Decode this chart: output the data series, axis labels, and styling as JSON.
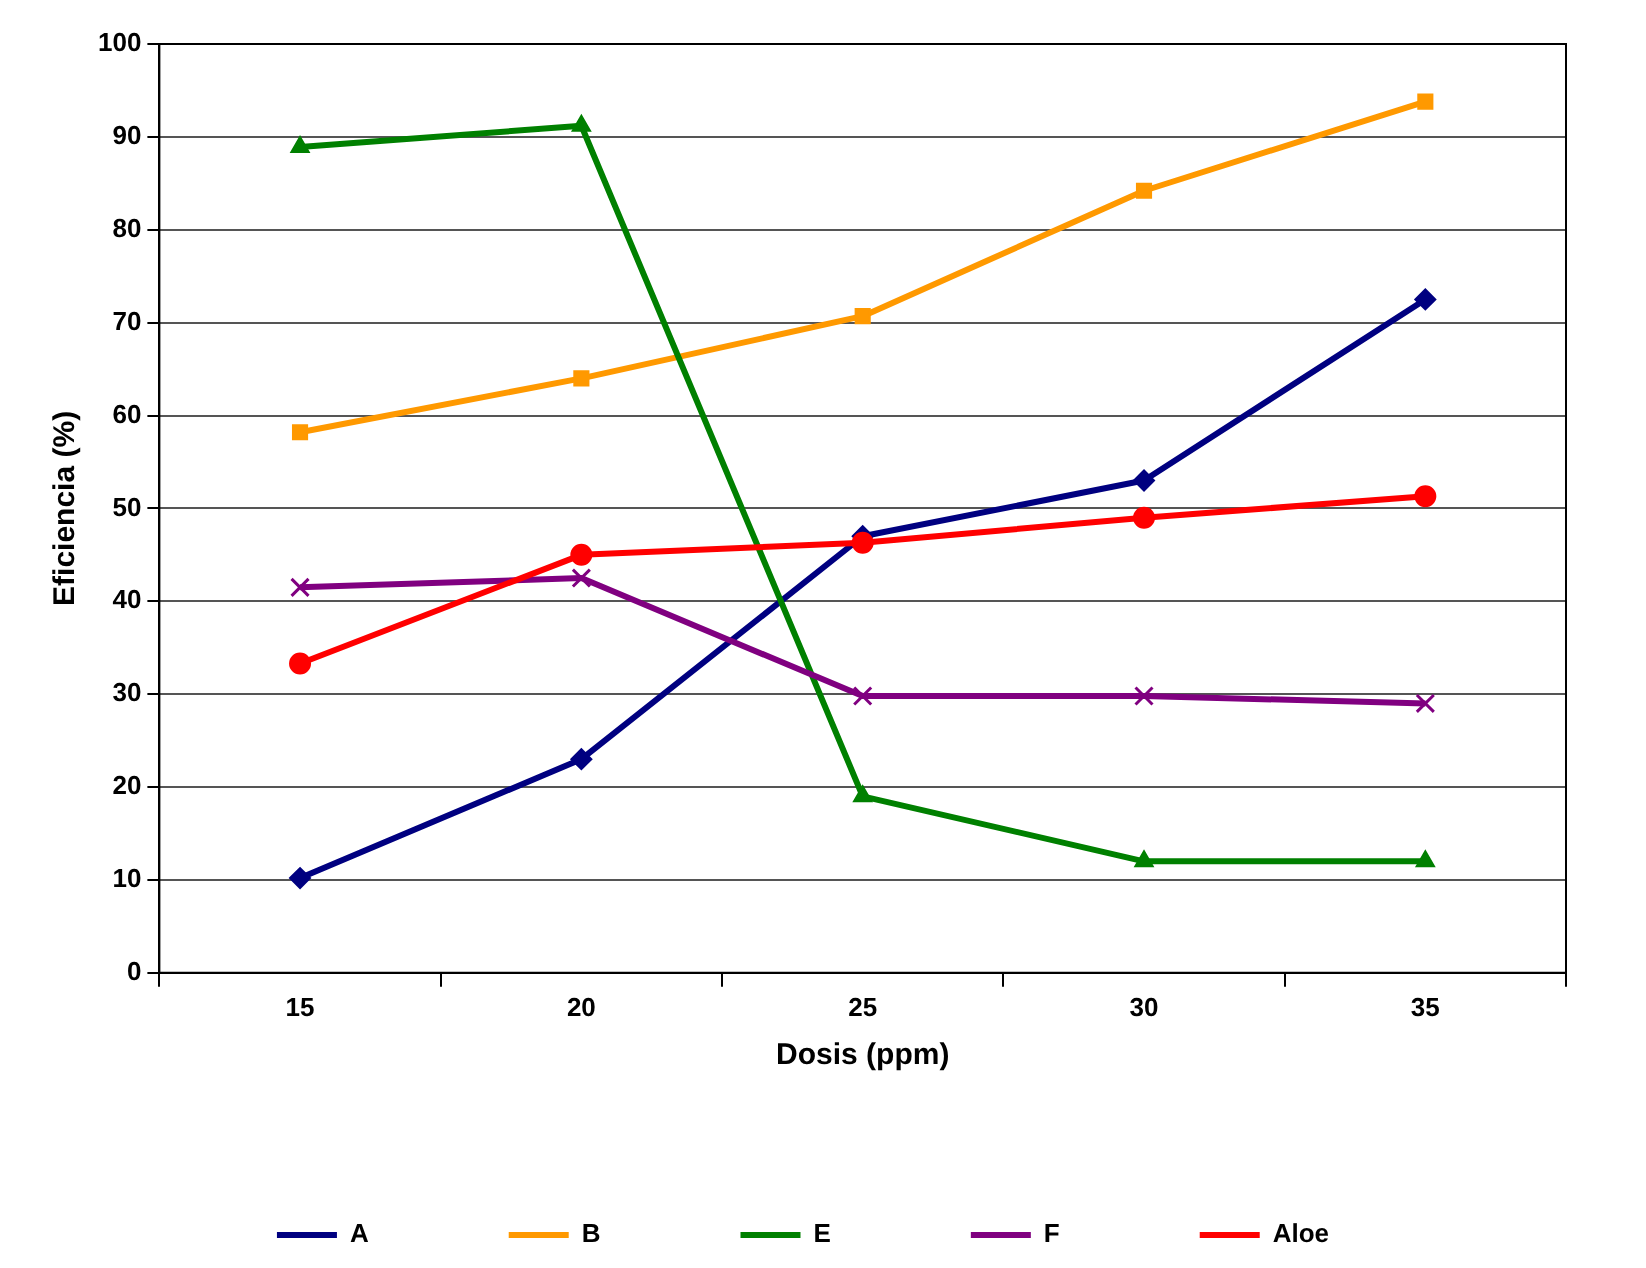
{
  "chart_data": {
    "type": "line",
    "xlabel": "Dosis (ppm)",
    "ylabel": "Eficiencia (%)",
    "categories": [
      "15",
      "20",
      "25",
      "30",
      "35"
    ],
    "series": [
      {
        "name": "A",
        "color": "#000080",
        "marker": "diamond",
        "values": [
          10.2,
          23,
          47,
          53,
          72.5
        ]
      },
      {
        "name": "B",
        "color": "#ff9900",
        "marker": "square",
        "values": [
          58.2,
          64,
          70.7,
          84.2,
          93.8
        ]
      },
      {
        "name": "E",
        "color": "#008000",
        "marker": "triangle",
        "values": [
          88.9,
          91.2,
          19,
          12,
          12
        ]
      },
      {
        "name": "F",
        "color": "#800080",
        "marker": "cross",
        "values": [
          41.5,
          42.5,
          29.8,
          29.8,
          29
        ]
      },
      {
        "name": "Aloe",
        "color": "#ff0000",
        "marker": "circle",
        "values": [
          33.3,
          45,
          46.3,
          49,
          51.3
        ]
      }
    ],
    "ylim": [
      0,
      100
    ],
    "yticks": [
      0,
      10,
      20,
      30,
      40,
      50,
      60,
      70,
      80,
      90,
      100
    ],
    "grid": "y",
    "legend": "bottom",
    "line_style": "solid"
  }
}
